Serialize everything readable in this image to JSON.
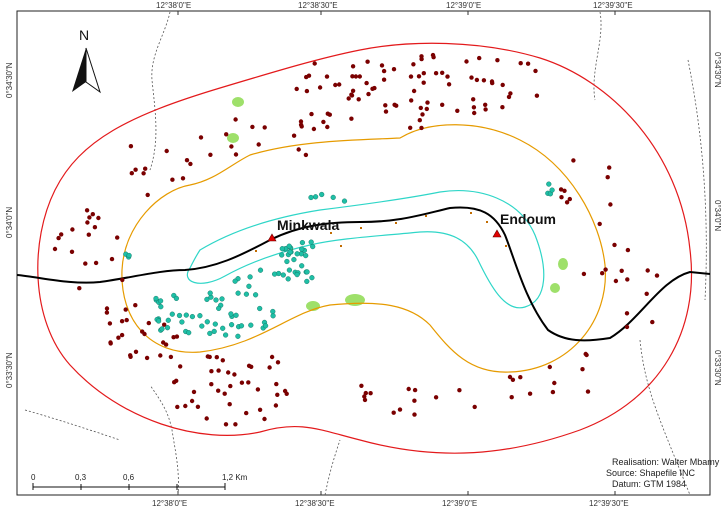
{
  "north_arrow": {
    "label": "N"
  },
  "top_coords": [
    "12°38'0\"E",
    "12°38'30\"E",
    "12°39'0\"E",
    "12°39'30\"E"
  ],
  "bottom_coords": [
    "12°38'0\"E",
    "12°38'30\"E",
    "12°39'0\"E",
    "12°39'30\"E"
  ],
  "left_coords": [
    "0°34'30\"N",
    "0°34'0\"N",
    "0°33'30\"N"
  ],
  "right_coords": [
    "0°34'30\"N",
    "0°34'0\"N",
    "0°33'30\"N"
  ],
  "places": [
    {
      "name": "Minkwala"
    },
    {
      "name": "Endoum"
    }
  ],
  "scale_bar": {
    "labels": [
      "0",
      "0,3",
      "0,6",
      "1,2 Km"
    ]
  },
  "credits": {
    "line1": "Realisation: Walter Mbamy",
    "line2": "Source: Shapefile INC",
    "line3": "Datum: GTM 1984"
  },
  "colors": {
    "outer_boundary": "#e31a1c",
    "middle_boundary": "#e69b00",
    "inner_boundary": "#2fd6c8",
    "road": "#000000",
    "red_points": "#7a0000",
    "cyan_points": "#1fbfa6",
    "green_patches": "#9ee06a"
  }
}
